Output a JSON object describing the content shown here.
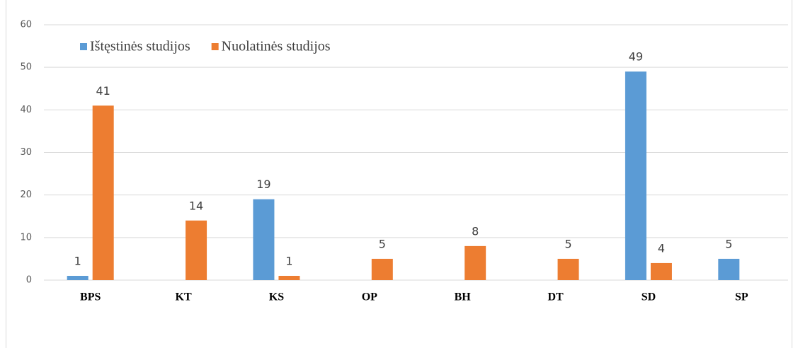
{
  "chart_data": {
    "type": "bar",
    "categories": [
      "BPS",
      "KT",
      "KS",
      "OP",
      "BH",
      "DT",
      "SD",
      "SP"
    ],
    "series": [
      {
        "name": "Ištęstinės studijos",
        "color": "#5b9bd5",
        "values": [
          1,
          null,
          19,
          null,
          null,
          null,
          49,
          5
        ]
      },
      {
        "name": "Nuolatinės studijos",
        "color": "#ed7d31",
        "values": [
          41,
          14,
          1,
          5,
          8,
          5,
          4,
          null
        ]
      }
    ],
    "ylim": [
      0,
      60
    ],
    "yticks": [
      0,
      10,
      20,
      30,
      40,
      50,
      60
    ],
    "grid": true,
    "legend": "top-left"
  }
}
